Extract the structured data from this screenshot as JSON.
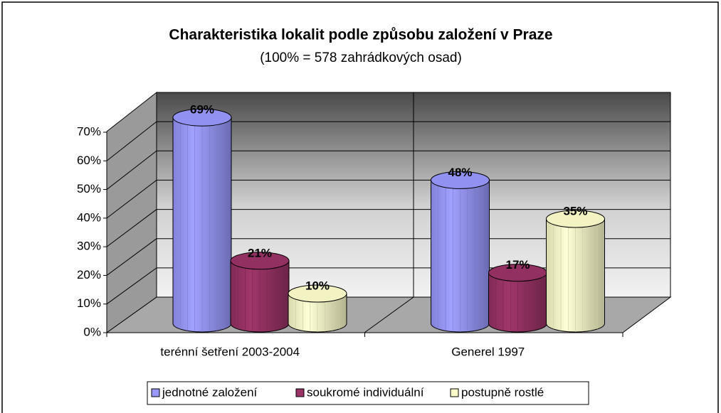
{
  "chart_data": {
    "type": "bar3d",
    "title": "Charakteristika lokalit podle způsobu založení v Praze",
    "subtitle": "(100% = 578 zahrádkových osad)",
    "categories": [
      "terénní šetření 2003-2004",
      "Generel 1997"
    ],
    "series": [
      {
        "name": "jednotné založení",
        "color": "#9999ff",
        "values": [
          69,
          48
        ],
        "value_labels": [
          "69%",
          "48%"
        ]
      },
      {
        "name": "soukromé individuální",
        "color": "#993366",
        "values": [
          21,
          17
        ],
        "value_labels": [
          "21%",
          "17%"
        ]
      },
      {
        "name": "postupně rostlé",
        "color": "#ffffcc",
        "values": [
          10,
          35
        ],
        "value_labels": [
          "10%",
          "35%"
        ]
      }
    ],
    "ylim": [
      0,
      70
    ],
    "yticks": [
      {
        "value": 0,
        "label": "0%"
      },
      {
        "value": 10,
        "label": "10%"
      },
      {
        "value": 20,
        "label": "20%"
      },
      {
        "value": 30,
        "label": "30%"
      },
      {
        "value": 40,
        "label": "40%"
      },
      {
        "value": 50,
        "label": "50%"
      },
      {
        "value": 60,
        "label": "60%"
      },
      {
        "value": 70,
        "label": "70%"
      }
    ],
    "grid": true,
    "legend": "bottom"
  }
}
